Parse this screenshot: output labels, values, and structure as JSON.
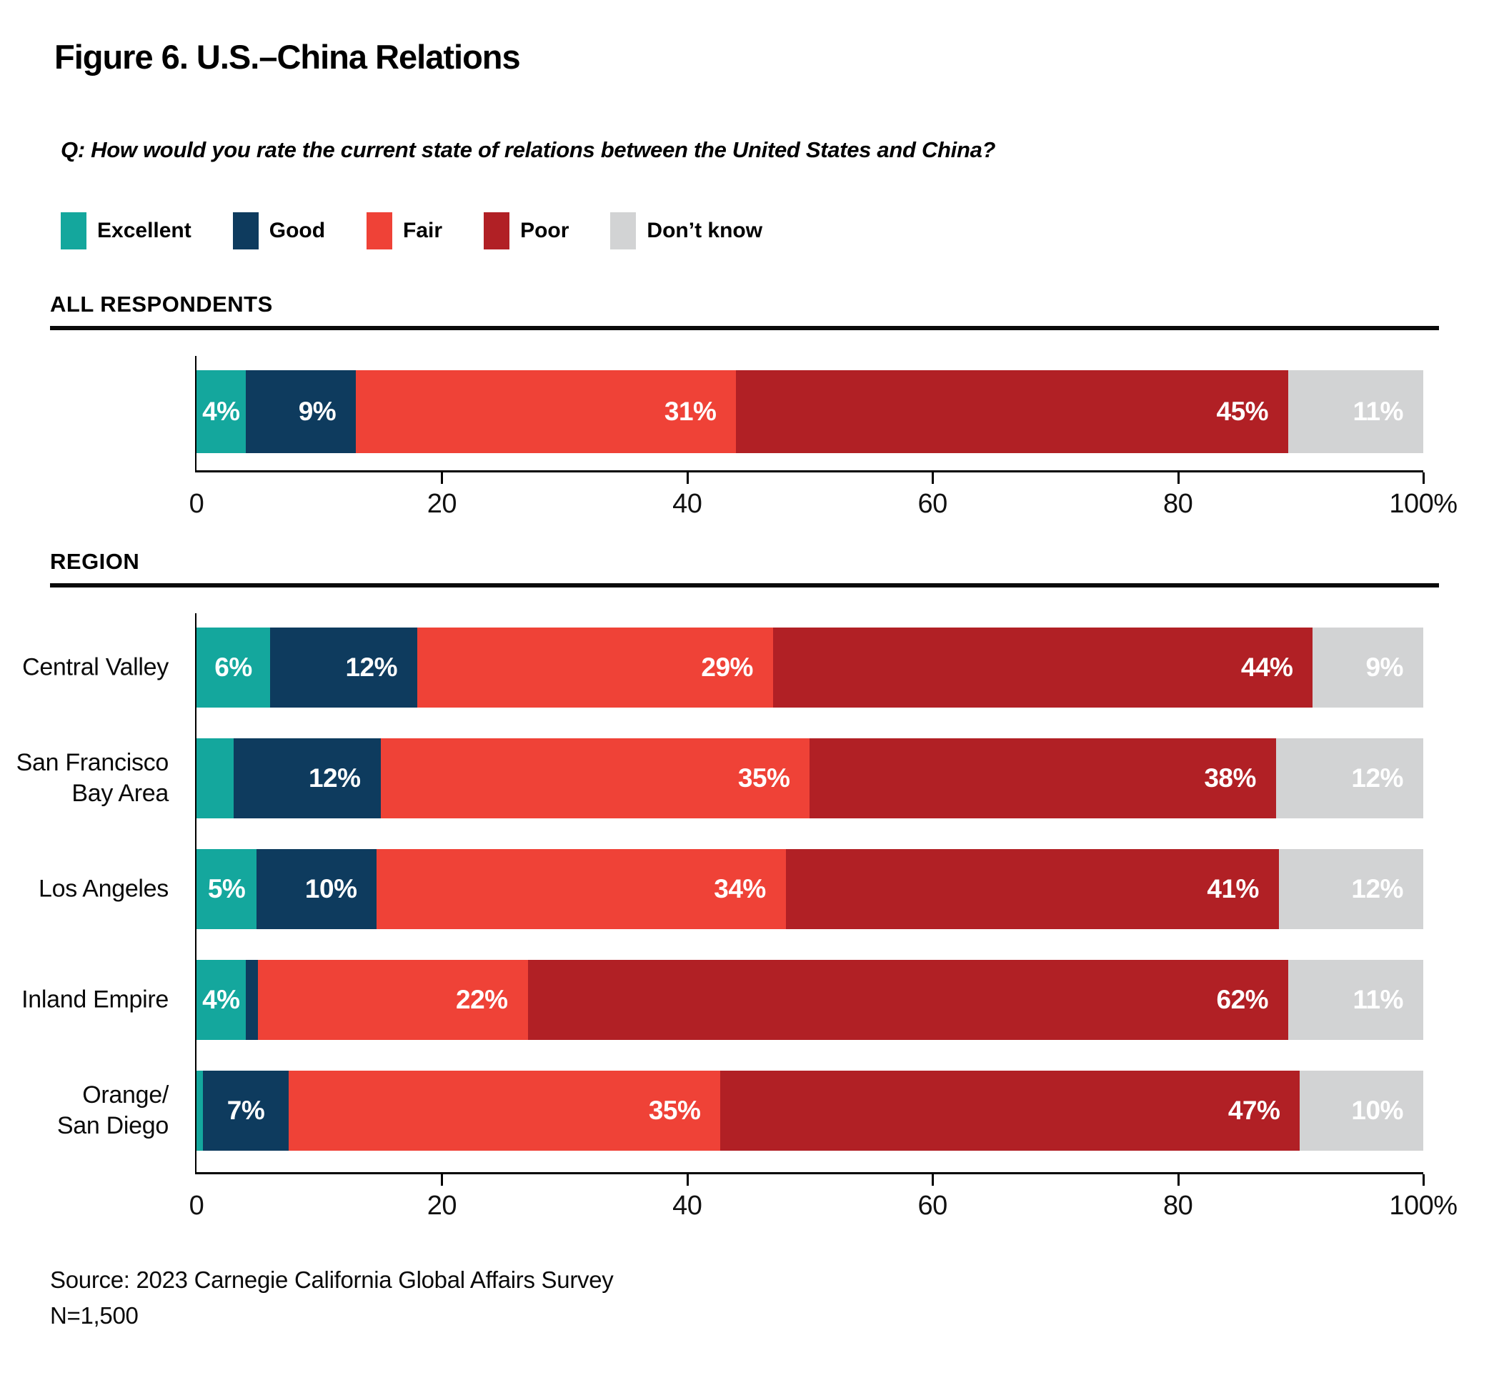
{
  "title": "Figure 6. U.S.–China Relations",
  "question": "Q: How would you rate the current state of relations between the United States and China?",
  "colors": {
    "excellent": "#14A79D",
    "good": "#0E3B5E",
    "fair": "#EF4237",
    "poor": "#B12025",
    "dont_know": "#D2D3D4",
    "rule": "#0a0a0a",
    "axis": "#000000"
  },
  "legend": {
    "items": [
      {
        "label": "Excellent",
        "color": "#14A79D"
      },
      {
        "label": "Good",
        "color": "#0E3B5E"
      },
      {
        "label": "Fair",
        "color": "#EF4237"
      },
      {
        "label": "Poor",
        "color": "#B12025"
      },
      {
        "label": "Don’t know",
        "color": "#D2D3D4"
      }
    ]
  },
  "chart_data": [
    {
      "type": "bar",
      "stacked": true,
      "orientation": "horizontal",
      "section": "ALL RESPONDENTS",
      "categories": [
        ""
      ],
      "xlim": [
        0,
        100
      ],
      "tick_labels": [
        "0",
        "20",
        "40",
        "60",
        "80",
        "100%"
      ],
      "grid": false,
      "legend_position": "top",
      "series": [
        {
          "name": "Excellent",
          "color": "#14A79D",
          "values": [
            4
          ],
          "labels": [
            "4%"
          ]
        },
        {
          "name": "Good",
          "color": "#0E3B5E",
          "values": [
            9
          ],
          "labels": [
            "9%"
          ]
        },
        {
          "name": "Fair",
          "color": "#EF4237",
          "values": [
            31
          ],
          "labels": [
            "31%"
          ]
        },
        {
          "name": "Poor",
          "color": "#B12025",
          "values": [
            45
          ],
          "labels": [
            "45%"
          ]
        },
        {
          "name": "Don’t know",
          "color": "#D2D3D4",
          "values": [
            11
          ],
          "labels": [
            "11%"
          ]
        }
      ]
    },
    {
      "type": "bar",
      "stacked": true,
      "orientation": "horizontal",
      "section": "REGION",
      "categories": [
        "Central Valley",
        "San Francisco\nBay Area",
        "Los Angeles",
        "Inland Empire",
        "Orange/\nSan Diego"
      ],
      "xlim": [
        0,
        100
      ],
      "tick_labels": [
        "0",
        "20",
        "40",
        "60",
        "80",
        "100%"
      ],
      "grid": false,
      "series": [
        {
          "name": "Excellent",
          "color": "#14A79D",
          "values": [
            6,
            3,
            5,
            4,
            0.5
          ],
          "labels": [
            "6%",
            "",
            "5%",
            "4%",
            ""
          ]
        },
        {
          "name": "Good",
          "color": "#0E3B5E",
          "values": [
            12,
            12,
            10,
            1,
            7
          ],
          "labels": [
            "12%",
            "12%",
            "10%",
            "",
            "7%"
          ]
        },
        {
          "name": "Fair",
          "color": "#EF4237",
          "values": [
            29,
            35,
            34,
            22,
            35
          ],
          "labels": [
            "29%",
            "35%",
            "34%",
            "22%",
            "35%"
          ]
        },
        {
          "name": "Poor",
          "color": "#B12025",
          "values": [
            44,
            38,
            41,
            62,
            47
          ],
          "labels": [
            "44%",
            "38%",
            "41%",
            "62%",
            "47%"
          ]
        },
        {
          "name": "Don’t know",
          "color": "#D2D3D4",
          "values": [
            9,
            12,
            12,
            11,
            10
          ],
          "labels": [
            "9%",
            "12%",
            "12%",
            "11%",
            "10%"
          ]
        }
      ]
    }
  ],
  "source": {
    "line1": "Source: 2023 Carnegie California Global Affairs Survey",
    "line2": "N=1,500"
  }
}
